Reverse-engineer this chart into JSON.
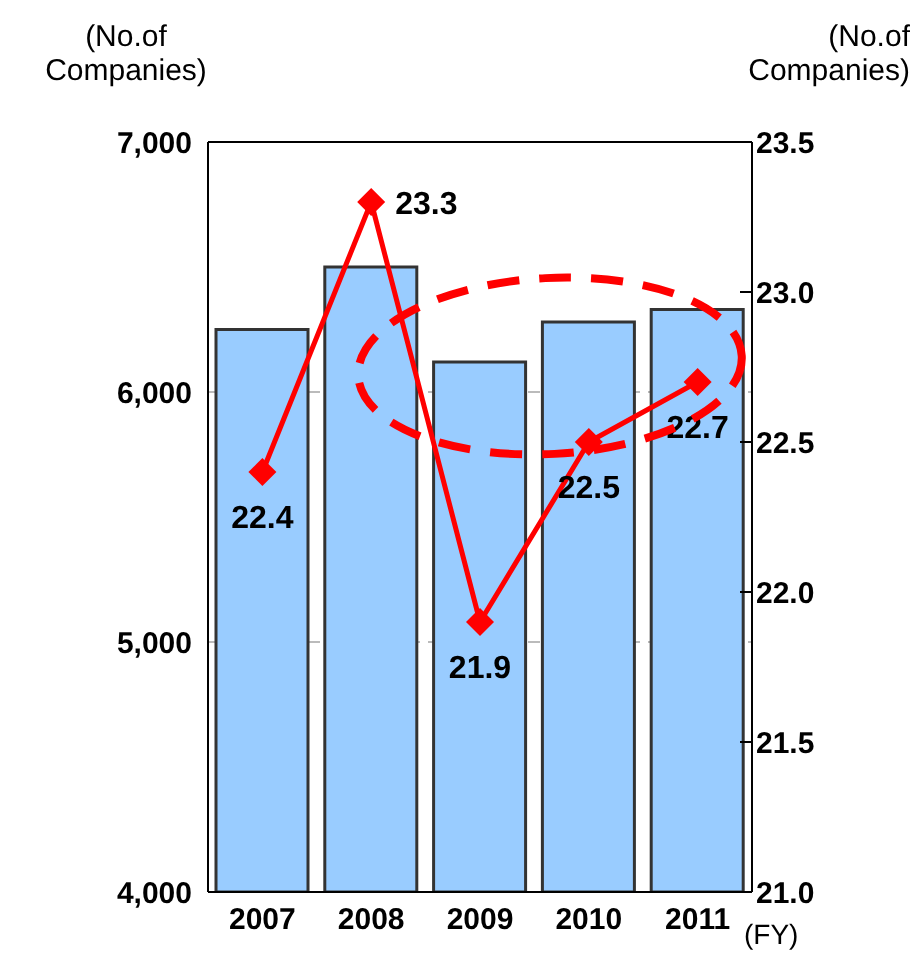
{
  "chart_data": {
    "type": "bar",
    "ylabel": "(No.of Companies)",
    "y2label": "(No.of Companies)",
    "xlabel": "(FY)",
    "categories": [
      "2007",
      "2008",
      "2009",
      "2010",
      "2011"
    ],
    "series": [
      {
        "color": "#99ccff",
        "values": [
          6250,
          6500,
          6120,
          6280,
          6330
        ]
      },
      {
        "type": "line",
        "axis": "y2",
        "color": "#ff0000",
        "values": [
          22.4,
          23.3,
          21.9,
          22.5,
          22.7
        ],
        "value_labels": [
          "22.4",
          "23.3",
          "21.9",
          "22.5",
          "22.7"
        ]
      }
    ],
    "ylim": [
      4000,
      7000
    ],
    "yticks": [
      {
        "value": 4000,
        "label": "4,000"
      },
      {
        "value": 5000,
        "label": "5,000"
      },
      {
        "value": 6000,
        "label": "6,000"
      },
      {
        "value": 7000,
        "label": "7,000"
      }
    ],
    "y2lim": [
      21,
      23.5
    ],
    "y2ticks": [
      {
        "value": 21,
        "label": "21.0"
      },
      21.5,
      {
        "value": 22,
        "label": "22.0"
      },
      22.5,
      {
        "value": 23,
        "label": "23.0"
      },
      23.5
    ],
    "grid": "y",
    "marker": "diamond",
    "legend": false
  }
}
